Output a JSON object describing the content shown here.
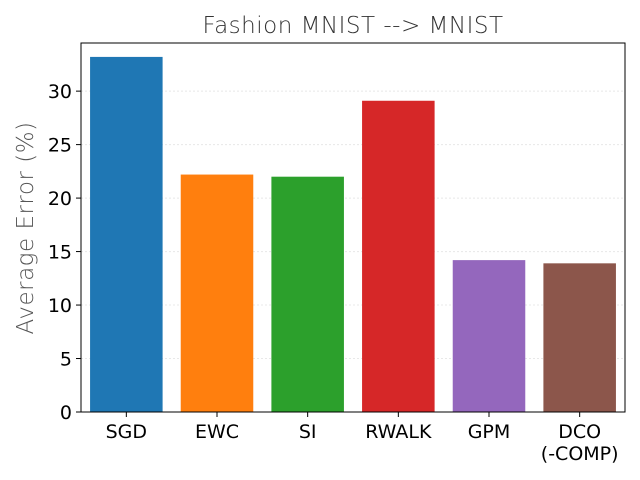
{
  "chart_data": {
    "type": "bar",
    "title": "Fashion MNIST --> MNIST",
    "xlabel": "",
    "ylabel": "Average Error (%)",
    "ylim": [
      0,
      34.5
    ],
    "yticks": [
      0,
      5,
      10,
      15,
      20,
      25,
      30
    ],
    "grid": "horizontal",
    "categories": [
      "SGD",
      "EWC",
      "SI",
      "RWALK",
      "GPM",
      "DCO\n(-COMP)"
    ],
    "values": [
      33.2,
      22.2,
      22.0,
      29.1,
      14.2,
      13.9
    ],
    "colors": [
      "#1f77b4",
      "#ff7f0e",
      "#2ca02c",
      "#d62728",
      "#9467bd",
      "#8c564b"
    ]
  }
}
